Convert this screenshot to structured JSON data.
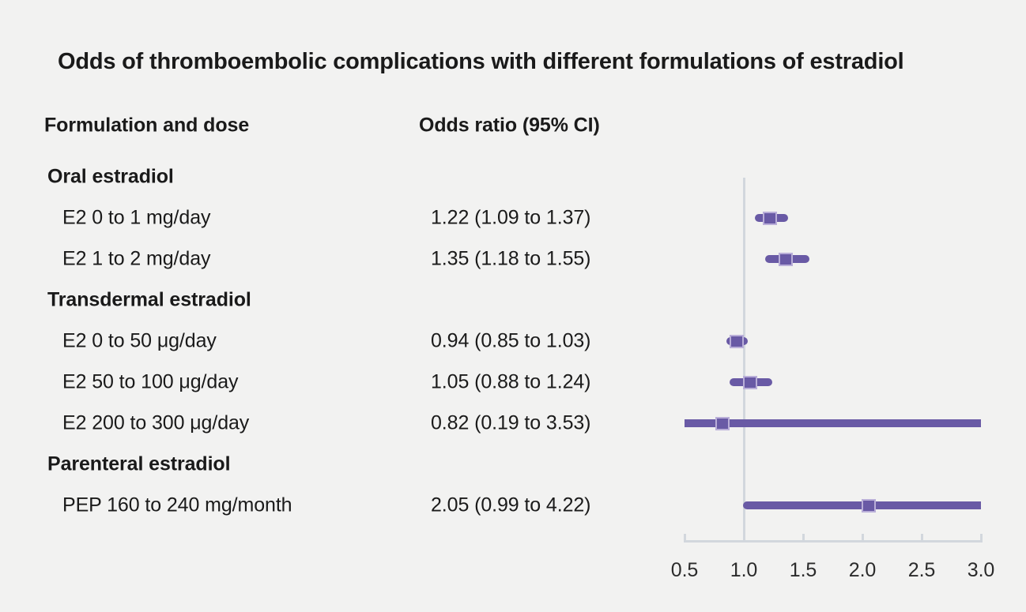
{
  "figure": {
    "title": "Odds of thromboembolic complications with different formulations of estradiol",
    "columns": {
      "formulation": "Formulation and dose",
      "odds_ratio": "Odds ratio (95% CI)"
    }
  },
  "colors": {
    "background": "#f2f2f1",
    "text": "#1a1a1a",
    "tick_text": "#2b2b2b",
    "marker_purple": "#695aa5",
    "marker_edge": "#b9aed8",
    "axis_gray": "#d2d7dd"
  },
  "chart_data": {
    "type": "forest",
    "title": "Odds of thromboembolic complications with different formulations of estradiol",
    "xlabel": "Odds ratio",
    "x_axis": {
      "xlim": [
        0.5,
        3.0
      ],
      "reference_line": 1.0,
      "ticks": [
        {
          "value": 0.5,
          "label": "0.5"
        },
        {
          "value": 1.0,
          "label": "1.0"
        },
        {
          "value": 1.5,
          "label": "1.5"
        },
        {
          "value": 2.0,
          "label": "2.0"
        },
        {
          "value": 2.5,
          "label": "2.5"
        },
        {
          "value": 3.0,
          "label": "3.0"
        }
      ],
      "note": "CI bars clipped at axis limits"
    },
    "groups": [
      {
        "label": "Oral estradiol",
        "rows": [
          {
            "label": "E2 0 to 1 mg/day",
            "or_text": "1.22 (1.09 to 1.37)",
            "estimate": 1.22,
            "ci_low": 1.09,
            "ci_high": 1.37
          },
          {
            "label": "E2 1 to 2 mg/day",
            "or_text": "1.35 (1.18 to 1.55)",
            "estimate": 1.35,
            "ci_low": 1.18,
            "ci_high": 1.55
          }
        ]
      },
      {
        "label": "Transdermal estradiol",
        "rows": [
          {
            "label": "E2 0 to 50 μg/day",
            "or_text": "0.94 (0.85 to 1.03)",
            "estimate": 0.94,
            "ci_low": 0.85,
            "ci_high": 1.03
          },
          {
            "label": "E2 50 to 100 μg/day",
            "or_text": "1.05 (0.88 to 1.24)",
            "estimate": 1.05,
            "ci_low": 0.88,
            "ci_high": 1.24
          },
          {
            "label": "E2 200 to 300 μg/day",
            "or_text": "0.82 (0.19 to 3.53)",
            "estimate": 0.82,
            "ci_low": 0.19,
            "ci_high": 3.53
          }
        ]
      },
      {
        "label": "Parenteral estradiol",
        "rows": [
          {
            "label": "PEP 160 to 240 mg/month",
            "or_text": "2.05 (0.99 to 4.22)",
            "estimate": 2.05,
            "ci_low": 0.99,
            "ci_high": 4.22
          }
        ]
      }
    ]
  }
}
